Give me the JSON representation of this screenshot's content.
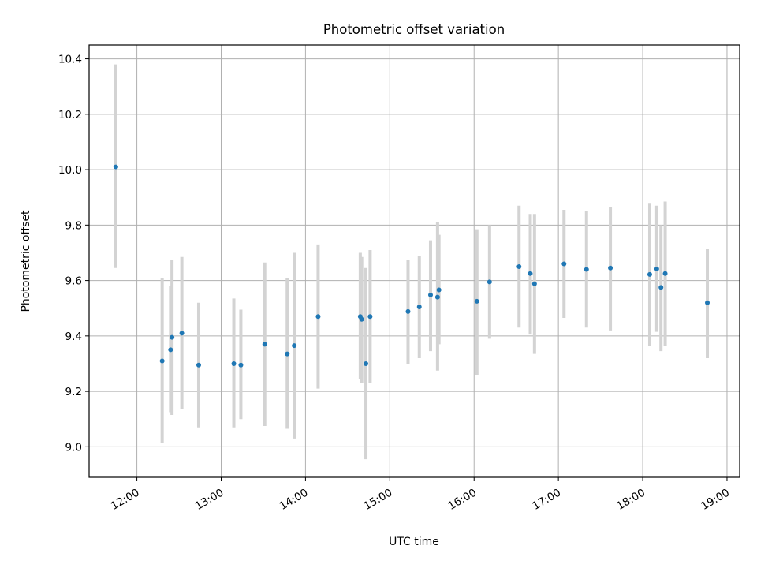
{
  "chart_data": {
    "type": "scatter",
    "title": "Photometric offset variation",
    "xlabel": "UTC time",
    "ylabel": "Photometric offset",
    "x_ticks": [
      "12:00",
      "13:00",
      "14:00",
      "15:00",
      "16:00",
      "17:00",
      "18:00",
      "19:00"
    ],
    "y_ticks": [
      "9.0",
      "9.2",
      "9.4",
      "9.6",
      "9.8",
      "10.0",
      "10.2",
      "10.4"
    ],
    "xlim": [
      "11:26",
      "19:09"
    ],
    "ylim": [
      8.89,
      10.45
    ],
    "grid": true,
    "error_bars": true,
    "colors": {
      "points": "#1f77b4",
      "error_bars": "#d3d3d3",
      "grid": "#b0b0b0"
    },
    "points": [
      {
        "x": "11:45",
        "y": 10.01,
        "low": 9.645,
        "high": 10.38
      },
      {
        "x": "12:18",
        "y": 9.31,
        "low": 9.015,
        "high": 9.61
      },
      {
        "x": "12:24",
        "y": 9.35,
        "low": 9.125,
        "high": 9.58
      },
      {
        "x": "12:25",
        "y": 9.395,
        "low": 9.115,
        "high": 9.675
      },
      {
        "x": "12:32",
        "y": 9.41,
        "low": 9.135,
        "high": 9.685
      },
      {
        "x": "12:44",
        "y": 9.295,
        "low": 9.07,
        "high": 9.52
      },
      {
        "x": "13:09",
        "y": 9.3,
        "low": 9.07,
        "high": 9.535
      },
      {
        "x": "13:14",
        "y": 9.295,
        "low": 9.1,
        "high": 9.495
      },
      {
        "x": "13:31",
        "y": 9.37,
        "low": 9.075,
        "high": 9.665
      },
      {
        "x": "13:47",
        "y": 9.335,
        "low": 9.065,
        "high": 9.61
      },
      {
        "x": "13:52",
        "y": 9.365,
        "low": 9.03,
        "high": 9.7
      },
      {
        "x": "14:09",
        "y": 9.47,
        "low": 9.21,
        "high": 9.73
      },
      {
        "x": "14:39",
        "y": 9.47,
        "low": 9.245,
        "high": 9.7
      },
      {
        "x": "14:40",
        "y": 9.46,
        "low": 9.23,
        "high": 9.685
      },
      {
        "x": "14:43",
        "y": 9.3,
        "low": 8.955,
        "high": 9.645
      },
      {
        "x": "14:46",
        "y": 9.47,
        "low": 9.23,
        "high": 9.71
      },
      {
        "x": "15:13",
        "y": 9.488,
        "low": 9.3,
        "high": 9.675
      },
      {
        "x": "15:21",
        "y": 9.505,
        "low": 9.32,
        "high": 9.69
      },
      {
        "x": "15:29",
        "y": 9.548,
        "low": 9.345,
        "high": 9.745
      },
      {
        "x": "15:34",
        "y": 9.54,
        "low": 9.275,
        "high": 9.81
      },
      {
        "x": "15:35",
        "y": 9.566,
        "low": 9.37,
        "high": 9.765
      },
      {
        "x": "16:02",
        "y": 9.525,
        "low": 9.26,
        "high": 9.785
      },
      {
        "x": "16:11",
        "y": 9.595,
        "low": 9.39,
        "high": 9.8
      },
      {
        "x": "16:32",
        "y": 9.65,
        "low": 9.43,
        "high": 9.87
      },
      {
        "x": "16:40",
        "y": 9.625,
        "low": 9.405,
        "high": 9.84
      },
      {
        "x": "16:43",
        "y": 9.588,
        "low": 9.335,
        "high": 9.84
      },
      {
        "x": "17:04",
        "y": 9.66,
        "low": 9.465,
        "high": 9.855
      },
      {
        "x": "17:20",
        "y": 9.64,
        "low": 9.43,
        "high": 9.85
      },
      {
        "x": "17:37",
        "y": 9.645,
        "low": 9.42,
        "high": 9.865
      },
      {
        "x": "18:05",
        "y": 9.622,
        "low": 9.365,
        "high": 9.88
      },
      {
        "x": "18:10",
        "y": 9.642,
        "low": 9.415,
        "high": 9.87
      },
      {
        "x": "18:13",
        "y": 9.575,
        "low": 9.345,
        "high": 9.8
      },
      {
        "x": "18:16",
        "y": 9.625,
        "low": 9.365,
        "high": 9.885
      },
      {
        "x": "18:46",
        "y": 9.52,
        "low": 9.32,
        "high": 9.715
      }
    ]
  }
}
